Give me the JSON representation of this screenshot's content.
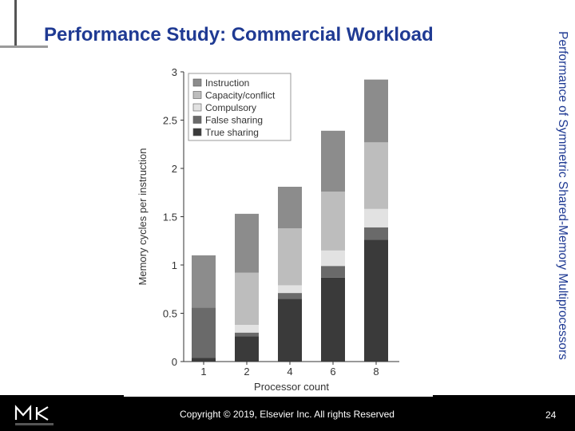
{
  "slide": {
    "title": "Performance Study:  Commercial Workload",
    "side_title": "Performance of Symmetric Shared-Memory Multiprocessors",
    "copyright": "Copyright © 2019, Elsevier Inc. All rights Reserved",
    "page_number": "24",
    "logo_letters": "MK",
    "logo_subtext": "MORGAN KAUFMANN"
  },
  "colors": {
    "title": "#1f3a93",
    "true_sharing": "#3a3a3a",
    "false_sharing": "#6a6a6a",
    "compulsory": "#e2e2e2",
    "capacity_conflict": "#bdbdbd",
    "instruction": "#8c8c8c"
  },
  "chart_data": {
    "type": "bar",
    "stacked": true,
    "categories": [
      "1",
      "2",
      "4",
      "6",
      "8"
    ],
    "ylabel": "Memory cycles per instruction",
    "xlabel": "Processor count",
    "ylim": [
      0,
      3
    ],
    "yticks": [
      "0",
      "0.5",
      "1",
      "1.5",
      "2",
      "2.5",
      "3"
    ],
    "legend_position": "top-left",
    "series": [
      {
        "name": "True sharing",
        "values": [
          0.04,
          0.26,
          0.65,
          0.87,
          1.26
        ]
      },
      {
        "name": "False sharing",
        "values": [
          0.52,
          0.04,
          0.06,
          0.12,
          0.13
        ]
      },
      {
        "name": "Compulsory",
        "values": [
          0.0,
          0.08,
          0.08,
          0.16,
          0.19
        ]
      },
      {
        "name": "Capacity/conflict",
        "values": [
          0.0,
          0.54,
          0.59,
          0.61,
          0.69
        ]
      },
      {
        "name": "Instruction",
        "values": [
          0.54,
          0.61,
          0.43,
          0.63,
          0.65
        ]
      }
    ]
  }
}
